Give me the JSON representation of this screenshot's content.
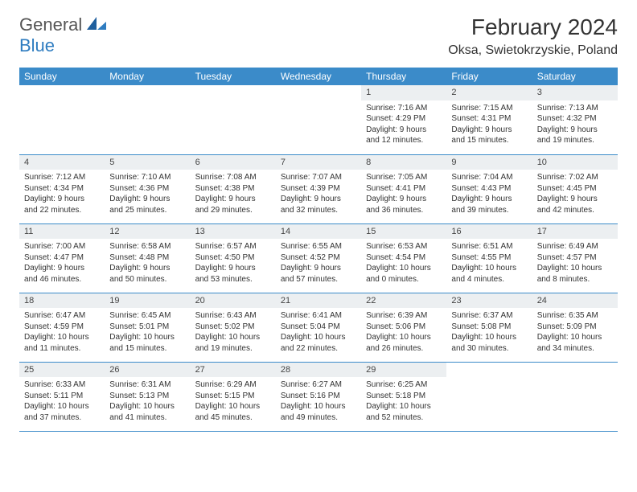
{
  "brand": {
    "name1": "General",
    "name2": "Blue"
  },
  "title": "February 2024",
  "location": "Oksa, Swietokrzyskie, Poland",
  "colors": {
    "header_bg": "#3b8bc9",
    "header_text": "#ffffff",
    "daynum_bg": "#eceff1",
    "rule": "#3b8bc9",
    "brand_gray": "#555555",
    "brand_blue": "#2e7cc0"
  },
  "weekdays": [
    "Sunday",
    "Monday",
    "Tuesday",
    "Wednesday",
    "Thursday",
    "Friday",
    "Saturday"
  ],
  "weeks": [
    [
      null,
      null,
      null,
      null,
      {
        "d": "1",
        "sr": "7:16 AM",
        "ss": "4:29 PM",
        "dl": "9 hours and 12 minutes."
      },
      {
        "d": "2",
        "sr": "7:15 AM",
        "ss": "4:31 PM",
        "dl": "9 hours and 15 minutes."
      },
      {
        "d": "3",
        "sr": "7:13 AM",
        "ss": "4:32 PM",
        "dl": "9 hours and 19 minutes."
      }
    ],
    [
      {
        "d": "4",
        "sr": "7:12 AM",
        "ss": "4:34 PM",
        "dl": "9 hours and 22 minutes."
      },
      {
        "d": "5",
        "sr": "7:10 AM",
        "ss": "4:36 PM",
        "dl": "9 hours and 25 minutes."
      },
      {
        "d": "6",
        "sr": "7:08 AM",
        "ss": "4:38 PM",
        "dl": "9 hours and 29 minutes."
      },
      {
        "d": "7",
        "sr": "7:07 AM",
        "ss": "4:39 PM",
        "dl": "9 hours and 32 minutes."
      },
      {
        "d": "8",
        "sr": "7:05 AM",
        "ss": "4:41 PM",
        "dl": "9 hours and 36 minutes."
      },
      {
        "d": "9",
        "sr": "7:04 AM",
        "ss": "4:43 PM",
        "dl": "9 hours and 39 minutes."
      },
      {
        "d": "10",
        "sr": "7:02 AM",
        "ss": "4:45 PM",
        "dl": "9 hours and 42 minutes."
      }
    ],
    [
      {
        "d": "11",
        "sr": "7:00 AM",
        "ss": "4:47 PM",
        "dl": "9 hours and 46 minutes."
      },
      {
        "d": "12",
        "sr": "6:58 AM",
        "ss": "4:48 PM",
        "dl": "9 hours and 50 minutes."
      },
      {
        "d": "13",
        "sr": "6:57 AM",
        "ss": "4:50 PM",
        "dl": "9 hours and 53 minutes."
      },
      {
        "d": "14",
        "sr": "6:55 AM",
        "ss": "4:52 PM",
        "dl": "9 hours and 57 minutes."
      },
      {
        "d": "15",
        "sr": "6:53 AM",
        "ss": "4:54 PM",
        "dl": "10 hours and 0 minutes."
      },
      {
        "d": "16",
        "sr": "6:51 AM",
        "ss": "4:55 PM",
        "dl": "10 hours and 4 minutes."
      },
      {
        "d": "17",
        "sr": "6:49 AM",
        "ss": "4:57 PM",
        "dl": "10 hours and 8 minutes."
      }
    ],
    [
      {
        "d": "18",
        "sr": "6:47 AM",
        "ss": "4:59 PM",
        "dl": "10 hours and 11 minutes."
      },
      {
        "d": "19",
        "sr": "6:45 AM",
        "ss": "5:01 PM",
        "dl": "10 hours and 15 minutes."
      },
      {
        "d": "20",
        "sr": "6:43 AM",
        "ss": "5:02 PM",
        "dl": "10 hours and 19 minutes."
      },
      {
        "d": "21",
        "sr": "6:41 AM",
        "ss": "5:04 PM",
        "dl": "10 hours and 22 minutes."
      },
      {
        "d": "22",
        "sr": "6:39 AM",
        "ss": "5:06 PM",
        "dl": "10 hours and 26 minutes."
      },
      {
        "d": "23",
        "sr": "6:37 AM",
        "ss": "5:08 PM",
        "dl": "10 hours and 30 minutes."
      },
      {
        "d": "24",
        "sr": "6:35 AM",
        "ss": "5:09 PM",
        "dl": "10 hours and 34 minutes."
      }
    ],
    [
      {
        "d": "25",
        "sr": "6:33 AM",
        "ss": "5:11 PM",
        "dl": "10 hours and 37 minutes."
      },
      {
        "d": "26",
        "sr": "6:31 AM",
        "ss": "5:13 PM",
        "dl": "10 hours and 41 minutes."
      },
      {
        "d": "27",
        "sr": "6:29 AM",
        "ss": "5:15 PM",
        "dl": "10 hours and 45 minutes."
      },
      {
        "d": "28",
        "sr": "6:27 AM",
        "ss": "5:16 PM",
        "dl": "10 hours and 49 minutes."
      },
      {
        "d": "29",
        "sr": "6:25 AM",
        "ss": "5:18 PM",
        "dl": "10 hours and 52 minutes."
      },
      null,
      null
    ]
  ],
  "labels": {
    "sunrise": "Sunrise:",
    "sunset": "Sunset:",
    "daylight": "Daylight:"
  }
}
